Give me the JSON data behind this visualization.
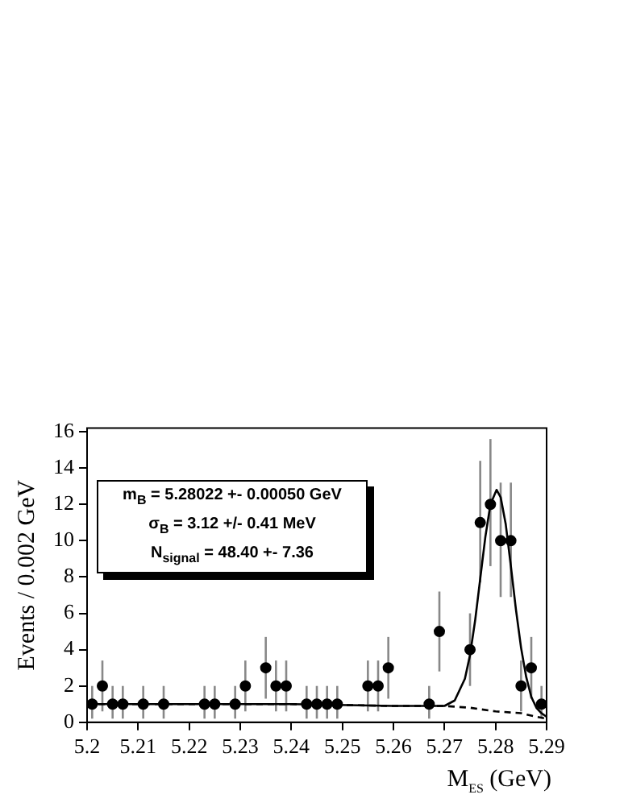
{
  "chart_data": {
    "type": "scatter",
    "xlabel": "M$_{ES}$ (GeV)",
    "ylabel": "Events / 0.002 GeV",
    "annotations": [
      "m$_{B}$ = 5.28022 +- 0.00050 GeV",
      "σ$_{B}$ = 3.12 +/- 0.41 MeV",
      "N$_{signal}$ = 48.40 +- 7.36"
    ],
    "xlim": [
      5.2,
      5.29
    ],
    "xticks": [
      5.2,
      5.21,
      5.22,
      5.23,
      5.24,
      5.25,
      5.26,
      5.27,
      5.28,
      5.29
    ],
    "ylim": [
      0,
      16.2
    ],
    "yticks": [
      0,
      2,
      4,
      6,
      8,
      10,
      12,
      14,
      16
    ],
    "grid": false,
    "legend": false,
    "series": [
      {
        "type": "scatter",
        "color": "#000000",
        "marker": "circle",
        "x": [
          5.201,
          5.203,
          5.205,
          5.207,
          5.211,
          5.215,
          5.223,
          5.225,
          5.229,
          5.231,
          5.235,
          5.237,
          5.239,
          5.243,
          5.245,
          5.247,
          5.249,
          5.255,
          5.257,
          5.259,
          5.267,
          5.269,
          5.275,
          5.277,
          5.279,
          5.281,
          5.283,
          5.285,
          5.287,
          5.289
        ],
        "values": [
          1,
          2,
          1,
          1,
          1,
          1,
          1,
          1,
          1,
          2,
          3,
          2,
          2,
          1,
          1,
          1,
          1,
          2,
          2,
          3,
          1,
          5,
          4,
          11,
          12,
          10,
          10,
          2,
          3,
          1
        ],
        "errors": [
          [
            0.2,
            2
          ],
          [
            0.6,
            3.4
          ],
          [
            0.2,
            2
          ],
          [
            0.2,
            2
          ],
          [
            0.2,
            2
          ],
          [
            0.2,
            2
          ],
          [
            0.2,
            2
          ],
          [
            0.2,
            2
          ],
          [
            0.2,
            2
          ],
          [
            0.6,
            3.4
          ],
          [
            1.3,
            4.7
          ],
          [
            0.6,
            3.4
          ],
          [
            0.6,
            3.4
          ],
          [
            0.2,
            2
          ],
          [
            0.2,
            2
          ],
          [
            0.2,
            2
          ],
          [
            0.2,
            2
          ],
          [
            0.6,
            3.4
          ],
          [
            0.6,
            3.4
          ],
          [
            1.3,
            4.7
          ],
          [
            0.2,
            2
          ],
          [
            2.8,
            7.2
          ],
          [
            2,
            6
          ],
          [
            7.7,
            14.4
          ],
          [
            8.6,
            15.6
          ],
          [
            6.9,
            13.2
          ],
          [
            6.9,
            13.2
          ],
          [
            0.6,
            3.4
          ],
          [
            1.3,
            4.7
          ],
          [
            0.2,
            2
          ]
        ]
      },
      {
        "type": "line",
        "color": "#000000",
        "marker": "none",
        "line_style": "solid",
        "x": [
          5.2,
          5.22,
          5.24,
          5.26,
          5.265,
          5.27,
          5.272,
          5.274,
          5.275,
          5.276,
          5.277,
          5.278,
          5.279,
          5.2802,
          5.281,
          5.282,
          5.283,
          5.284,
          5.285,
          5.286,
          5.287,
          5.288,
          5.289,
          5.29
        ],
        "values": [
          1,
          1,
          1,
          0.9,
          0.9,
          0.9,
          1.2,
          2.4,
          3.7,
          5.6,
          7.9,
          10.2,
          12,
          12.8,
          12.4,
          10.9,
          8.6,
          6.2,
          4.1,
          2.5,
          1.4,
          0.8,
          0.5,
          0.3
        ]
      },
      {
        "type": "line",
        "color": "#000000",
        "marker": "none",
        "line_style": "dashed",
        "x": [
          5.2,
          5.22,
          5.24,
          5.26,
          5.265,
          5.27,
          5.275,
          5.28,
          5.285,
          5.288,
          5.29
        ],
        "values": [
          1,
          1,
          1,
          0.9,
          0.9,
          0.9,
          0.8,
          0.6,
          0.5,
          0.3,
          0.2
        ]
      }
    ]
  }
}
